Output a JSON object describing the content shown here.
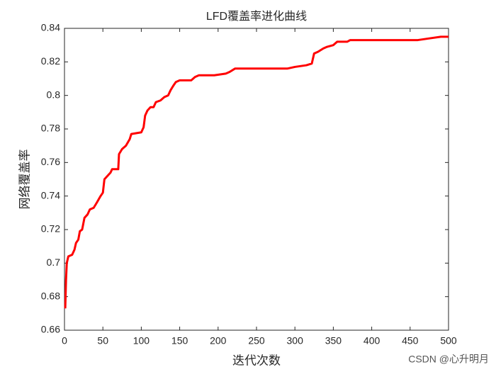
{
  "chart_data": {
    "type": "line",
    "title": "LFD覆盖率进化曲线",
    "x_label": "迭代次数",
    "y_label": "网络覆盖率",
    "watermark": "CSDN @心升明月",
    "xlim": [
      0,
      500
    ],
    "ylim": [
      0.66,
      0.84
    ],
    "xticks": [
      0,
      50,
      100,
      150,
      200,
      250,
      300,
      350,
      400,
      450,
      500
    ],
    "yticks": [
      0.66,
      0.68,
      0.7,
      0.72,
      0.74,
      0.76,
      0.78,
      0.8,
      0.82,
      0.84
    ],
    "series": [
      {
        "color": "#ff0000",
        "x": [
          1,
          2,
          3,
          5,
          10,
          13,
          15,
          18,
          20,
          23,
          26,
          30,
          33,
          38,
          42,
          47,
          50,
          52,
          56,
          60,
          62,
          70,
          71,
          75,
          80,
          85,
          87,
          100,
          103,
          105,
          108,
          112,
          116,
          119,
          125,
          130,
          135,
          138,
          142,
          145,
          150,
          165,
          170,
          175,
          195,
          210,
          215,
          222,
          290,
          300,
          315,
          322,
          325,
          330,
          337,
          342,
          350,
          355,
          368,
          372,
          420,
          460,
          475,
          490,
          500
        ],
        "values": [
          0.673,
          0.69,
          0.7,
          0.704,
          0.705,
          0.708,
          0.712,
          0.714,
          0.719,
          0.72,
          0.727,
          0.729,
          0.732,
          0.733,
          0.736,
          0.74,
          0.742,
          0.75,
          0.752,
          0.754,
          0.756,
          0.756,
          0.765,
          0.768,
          0.77,
          0.774,
          0.777,
          0.778,
          0.781,
          0.788,
          0.791,
          0.793,
          0.793,
          0.796,
          0.797,
          0.799,
          0.8,
          0.803,
          0.806,
          0.808,
          0.809,
          0.809,
          0.811,
          0.812,
          0.812,
          0.813,
          0.814,
          0.816,
          0.816,
          0.817,
          0.818,
          0.819,
          0.825,
          0.826,
          0.828,
          0.829,
          0.83,
          0.832,
          0.832,
          0.833,
          0.833,
          0.833,
          0.834,
          0.835,
          0.835
        ]
      }
    ]
  }
}
